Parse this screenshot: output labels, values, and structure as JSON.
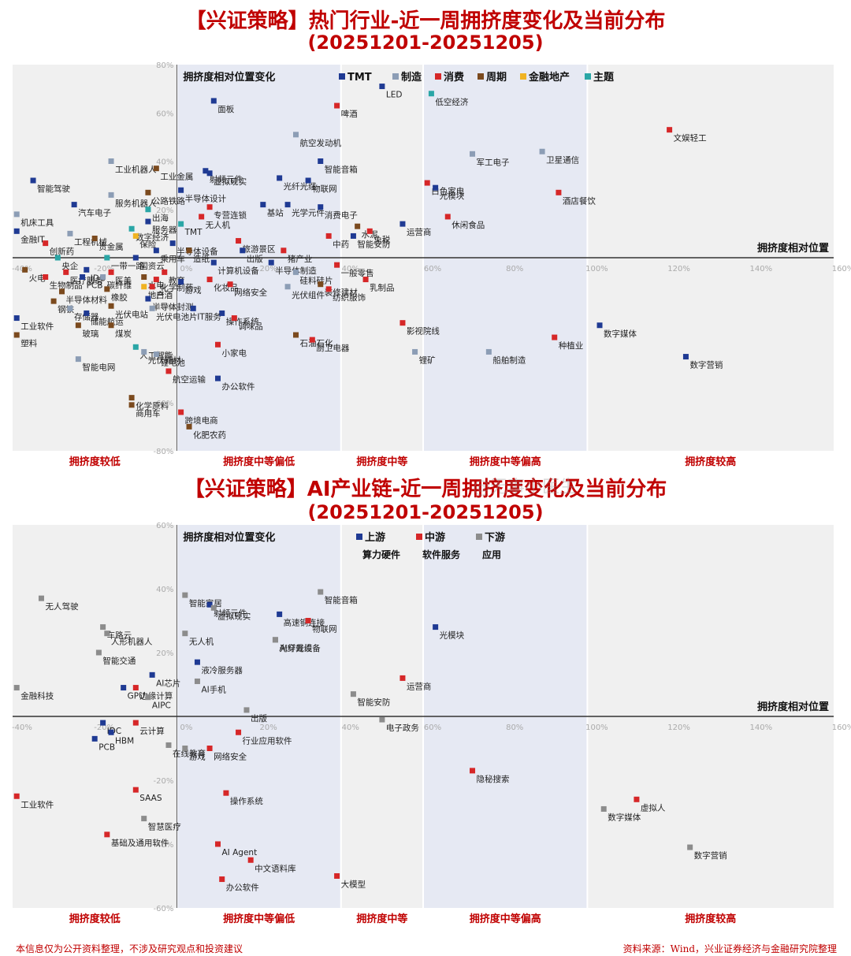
{
  "chart_data": [
    {
      "type": "scatter",
      "title": "【兴证策略】热门行业-近一周拥挤度变化及当前分布",
      "subtitle": "(20251201-20251205)",
      "xlabel": "拥挤度相对位置",
      "ylabel": "拥挤度相对位置变化",
      "xlim": [
        -40,
        160
      ],
      "ylim": [
        -80,
        80
      ],
      "xticks": [
        "-40%",
        "-20%",
        "0%",
        "20%",
        "40%",
        "60%",
        "80%",
        "100%",
        "120%",
        "140%",
        "160%"
      ],
      "yticks": [
        "-80%",
        "-60%",
        "-40%",
        "-20%",
        "0%",
        "20%",
        "40%",
        "60%",
        "80%"
      ],
      "zones": [
        "拥挤度较低",
        "拥挤度中等偏低",
        "拥挤度中等",
        "拥挤度中等偏高",
        "拥挤度较高"
      ],
      "legend_position": "top",
      "categories": [
        {
          "key": "TMT",
          "name": "TMT",
          "color": "#1f3a93"
        },
        {
          "key": "MFG",
          "name": "制造",
          "color": "#8c9db5"
        },
        {
          "key": "CON",
          "name": "消费",
          "color": "#d62728"
        },
        {
          "key": "CYC",
          "name": "周期",
          "color": "#7b4a1e"
        },
        {
          "key": "FIN",
          "name": "金融地产",
          "color": "#f0b323"
        },
        {
          "key": "THM",
          "name": "主题",
          "color": "#2aa6a6"
        }
      ],
      "points": [
        {
          "label": "文娱轻工",
          "x": 120,
          "y": 53,
          "cat": "CON"
        },
        {
          "label": "LED",
          "x": 50,
          "y": 71,
          "cat": "TMT"
        },
        {
          "label": "低空经济",
          "x": 62,
          "y": 68,
          "cat": "THM"
        },
        {
          "label": "面板",
          "x": 9,
          "y": 65,
          "cat": "TMT"
        },
        {
          "label": "啤酒",
          "x": 39,
          "y": 63,
          "cat": "CON"
        },
        {
          "label": "航空发动机",
          "x": 29,
          "y": 51,
          "cat": "MFG"
        },
        {
          "label": "军工电子",
          "x": 72,
          "y": 43,
          "cat": "MFG"
        },
        {
          "label": "卫星通信",
          "x": 89,
          "y": 44,
          "cat": "MFG"
        },
        {
          "label": "工业机器人",
          "x": -16,
          "y": 40,
          "cat": "MFG"
        },
        {
          "label": "工业金属",
          "x": -5,
          "y": 37,
          "cat": "CYC"
        },
        {
          "label": "射频元件",
          "x": 7,
          "y": 36,
          "cat": "TMT"
        },
        {
          "label": "虚拟现实",
          "x": 8,
          "y": 35,
          "cat": "TMT"
        },
        {
          "label": "光纤光缆",
          "x": 25,
          "y": 33,
          "cat": "TMT"
        },
        {
          "label": "智能音箱",
          "x": 35,
          "y": 40,
          "cat": "TMT"
        },
        {
          "label": "物联网",
          "x": 32,
          "y": 32,
          "cat": "TMT"
        },
        {
          "label": "白色家电",
          "x": 61,
          "y": 31,
          "cat": "CON"
        },
        {
          "label": "光模块",
          "x": 63,
          "y": 29,
          "cat": "TMT"
        },
        {
          "label": "酒店餐饮",
          "x": 93,
          "y": 27,
          "cat": "CON"
        },
        {
          "label": "智能驾驶",
          "x": -35,
          "y": 32,
          "cat": "TMT"
        },
        {
          "label": "服务机器人",
          "x": -16,
          "y": 26,
          "cat": "MFG"
        },
        {
          "label": "公路铁路",
          "x": -7,
          "y": 27,
          "cat": "CYC"
        },
        {
          "label": "半导体设计",
          "x": 1,
          "y": 28,
          "cat": "TMT"
        },
        {
          "label": "基站",
          "x": 21,
          "y": 22,
          "cat": "TMT"
        },
        {
          "label": "光学元件",
          "x": 27,
          "y": 22,
          "cat": "TMT"
        },
        {
          "label": "消费电子",
          "x": 35,
          "y": 21,
          "cat": "TMT"
        },
        {
          "label": "休闲食品",
          "x": 66,
          "y": 17,
          "cat": "CON"
        },
        {
          "label": "机床工具",
          "x": -39,
          "y": 18,
          "cat": "MFG"
        },
        {
          "label": "汽车电子",
          "x": -25,
          "y": 22,
          "cat": "TMT"
        },
        {
          "label": "出海",
          "x": -7,
          "y": 20,
          "cat": "THM"
        },
        {
          "label": "无人机",
          "x": 6,
          "y": 17,
          "cat": "CON"
        },
        {
          "label": "专营连锁",
          "x": 8,
          "y": 21,
          "cat": "CON"
        },
        {
          "label": "水泥",
          "x": 44,
          "y": 13,
          "cat": "CYC"
        },
        {
          "label": "运营商",
          "x": 55,
          "y": 14,
          "cat": "TMT"
        },
        {
          "label": "服务器",
          "x": -7,
          "y": 15,
          "cat": "TMT"
        },
        {
          "label": "金融IT",
          "x": -39,
          "y": 11,
          "cat": "TMT"
        },
        {
          "label": "工程机械",
          "x": -26,
          "y": 10,
          "cat": "MFG"
        },
        {
          "label": "数字经济",
          "x": -11,
          "y": 12,
          "cat": "THM"
        },
        {
          "label": "TMT",
          "x": 1,
          "y": 14,
          "cat": "THM"
        },
        {
          "label": "中药",
          "x": 37,
          "y": 9,
          "cat": "CON"
        },
        {
          "label": "免税",
          "x": 47,
          "y": 11,
          "cat": "CON"
        },
        {
          "label": "创新药",
          "x": -32,
          "y": 6,
          "cat": "CON"
        },
        {
          "label": "贵金属",
          "x": -20,
          "y": 8,
          "cat": "CYC"
        },
        {
          "label": "保险",
          "x": -10,
          "y": 9,
          "cat": "FIN"
        },
        {
          "label": "半导体设备",
          "x": -1,
          "y": 6,
          "cat": "TMT"
        },
        {
          "label": "旅游景区",
          "x": 15,
          "y": 7,
          "cat": "CON"
        },
        {
          "label": "猪产业",
          "x": 26,
          "y": 3,
          "cat": "CON"
        },
        {
          "label": "智能安防",
          "x": 43,
          "y": 9,
          "cat": "TMT"
        },
        {
          "label": "国资云",
          "x": -10,
          "y": 0,
          "cat": "TMT"
        },
        {
          "label": "乘用车",
          "x": -5,
          "y": 3,
          "cat": "TMT"
        },
        {
          "label": "造纸",
          "x": 3,
          "y": 3,
          "cat": "CYC"
        },
        {
          "label": "出版",
          "x": 16,
          "y": 3,
          "cat": "TMT"
        },
        {
          "label": "一带一路",
          "x": -17,
          "y": 0,
          "cat": "THM"
        },
        {
          "label": "央企",
          "x": -29,
          "y": 0,
          "cat": "THM"
        },
        {
          "label": "医疗服务",
          "x": -27,
          "y": -6,
          "cat": "CON"
        },
        {
          "label": "IDC",
          "x": -22,
          "y": -5,
          "cat": "TMT"
        },
        {
          "label": "医美",
          "x": -16,
          "y": -6,
          "cat": "CON"
        },
        {
          "label": "教育",
          "x": -3,
          "y": -6,
          "cat": "CON"
        },
        {
          "label": "计算机设备",
          "x": 9,
          "y": -2,
          "cat": "TMT"
        },
        {
          "label": "半导体制造",
          "x": 23,
          "y": -2,
          "cat": "TMT"
        },
        {
          "label": "硅料硅片",
          "x": 29,
          "y": -6,
          "cat": "MFG"
        },
        {
          "label": "一般零售",
          "x": 39,
          "y": -3,
          "cat": "CON"
        },
        {
          "label": "火电",
          "x": -37,
          "y": -5,
          "cat": "CYC"
        },
        {
          "label": "生物制品",
          "x": -32,
          "y": -8,
          "cat": "CON"
        },
        {
          "label": "PCB",
          "x": -23,
          "y": -8,
          "cat": "TMT"
        },
        {
          "label": "碳纤维",
          "x": -18,
          "y": -8,
          "cat": "MFG"
        },
        {
          "label": "水电",
          "x": -8,
          "y": -8,
          "cat": "CYC"
        },
        {
          "label": "化学制药",
          "x": -5,
          "y": -9,
          "cat": "CON"
        },
        {
          "label": "地产",
          "x": -8,
          "y": -12,
          "cat": "FIN"
        },
        {
          "label": "白酒",
          "x": -6,
          "y": -12,
          "cat": "CON"
        },
        {
          "label": "化妆品",
          "x": 8,
          "y": -9,
          "cat": "CON"
        },
        {
          "label": "装修建材",
          "x": 35,
          "y": -11,
          "cat": "CYC"
        },
        {
          "label": "乳制品",
          "x": 46,
          "y": -9,
          "cat": "CON"
        },
        {
          "label": "半导体材料",
          "x": -28,
          "y": -14,
          "cat": "CYC"
        },
        {
          "label": "橡胶",
          "x": -17,
          "y": -13,
          "cat": "CYC"
        },
        {
          "label": "半导体封测",
          "x": -7,
          "y": -17,
          "cat": "TMT"
        },
        {
          "label": "游戏",
          "x": 1,
          "y": -10,
          "cat": "TMT"
        },
        {
          "label": "网络安全",
          "x": 13,
          "y": -11,
          "cat": "CON"
        },
        {
          "label": "光伏组件",
          "x": 27,
          "y": -12,
          "cat": "MFG"
        },
        {
          "label": "纺织服饰",
          "x": 37,
          "y": -13,
          "cat": "CON"
        },
        {
          "label": "钢铁",
          "x": -30,
          "y": -18,
          "cat": "CYC"
        },
        {
          "label": "工业软件",
          "x": -39,
          "y": -25,
          "cat": "TMT"
        },
        {
          "label": "存储器",
          "x": -26,
          "y": -21,
          "cat": "MFG"
        },
        {
          "label": "储能航运",
          "x": -22,
          "y": -23,
          "cat": "TMT"
        },
        {
          "label": "光伏电站",
          "x": -16,
          "y": -20,
          "cat": "CYC"
        },
        {
          "label": "光伏电池片",
          "x": -6,
          "y": -21,
          "cat": "MFG"
        },
        {
          "label": "操作系统",
          "x": 11,
          "y": -23,
          "cat": "TMT"
        },
        {
          "label": "IT服务",
          "x": 4,
          "y": -21,
          "cat": "TMT"
        },
        {
          "label": "调味品",
          "x": 14,
          "y": -25,
          "cat": "CON"
        },
        {
          "label": "影视院线",
          "x": 55,
          "y": -27,
          "cat": "CON"
        },
        {
          "label": "种植业",
          "x": 92,
          "y": -33,
          "cat": "CON"
        },
        {
          "label": "数字媒体",
          "x": 103,
          "y": -28,
          "cat": "TMT"
        },
        {
          "label": "塑料",
          "x": -39,
          "y": -32,
          "cat": "CYC"
        },
        {
          "label": "玻璃",
          "x": -24,
          "y": -28,
          "cat": "CYC"
        },
        {
          "label": "煤炭",
          "x": -16,
          "y": -28,
          "cat": "CYC"
        },
        {
          "label": "石油石化",
          "x": 29,
          "y": -32,
          "cat": "CYC"
        },
        {
          "label": "厨卫电器",
          "x": 33,
          "y": -34,
          "cat": "CON"
        },
        {
          "label": "人工智能",
          "x": -10,
          "y": -37,
          "cat": "THM"
        },
        {
          "label": "光伏辅材",
          "x": -8,
          "y": -39,
          "cat": "MFG"
        },
        {
          "label": "小家电",
          "x": 10,
          "y": -36,
          "cat": "CON"
        },
        {
          "label": "锂矿",
          "x": 58,
          "y": -39,
          "cat": "MFG"
        },
        {
          "label": "船舶制造",
          "x": 76,
          "y": -39,
          "cat": "MFG"
        },
        {
          "label": "数字营销",
          "x": 124,
          "y": -41,
          "cat": "TMT"
        },
        {
          "label": "锂电池",
          "x": -5,
          "y": -40,
          "cat": "MFG"
        },
        {
          "label": "智能电网",
          "x": -24,
          "y": -42,
          "cat": "MFG"
        },
        {
          "label": "航空运输",
          "x": -2,
          "y": -47,
          "cat": "CON"
        },
        {
          "label": "办公软件",
          "x": 10,
          "y": -50,
          "cat": "TMT"
        },
        {
          "label": "化学原料",
          "x": -11,
          "y": -58,
          "cat": "CYC"
        },
        {
          "label": "商用车",
          "x": -11,
          "y": -61,
          "cat": "CYC"
        },
        {
          "label": "跨境电商",
          "x": 1,
          "y": -64,
          "cat": "CON"
        },
        {
          "label": "化肥农药",
          "x": 3,
          "y": -70,
          "cat": "CYC"
        }
      ]
    },
    {
      "type": "scatter",
      "title": "【兴证策略】AI产业链-近一周拥挤度变化及当前分布",
      "subtitle": "(20251201-20251205)",
      "xlabel": "拥挤度相对位置",
      "ylabel": "拥挤度相对位置变化",
      "xlim": [
        -40,
        160
      ],
      "ylim": [
        -60,
        60
      ],
      "xticks": [
        "-40%",
        "-20%",
        "0%",
        "20%",
        "40%",
        "60%",
        "80%",
        "100%",
        "120%",
        "140%",
        "160%"
      ],
      "yticks": [
        "-60%",
        "-40%",
        "-20%",
        "0%",
        "20%",
        "40%",
        "60%"
      ],
      "zones": [
        "拥挤度较低",
        "拥挤度中等偏低",
        "拥挤度中等",
        "拥挤度中等偏高",
        "拥挤度较高"
      ],
      "legend_position": "top",
      "categories": [
        {
          "key": "UP",
          "name": "上游",
          "sub": "算力硬件",
          "color": "#1f3a93"
        },
        {
          "key": "MID",
          "name": "中游",
          "sub": "软件服务",
          "color": "#d62728"
        },
        {
          "key": "DN",
          "name": "下游",
          "sub": "应用",
          "color": "#8c8c8c"
        }
      ],
      "points": [
        {
          "label": "智能家居",
          "x": 2,
          "y": 38,
          "cat": "DN"
        },
        {
          "label": "射频元件",
          "x": 8,
          "y": 35,
          "cat": "UP"
        },
        {
          "label": "虚拟现实",
          "x": 9,
          "y": 34,
          "cat": "DN"
        },
        {
          "label": "高速铜连接",
          "x": 25,
          "y": 32,
          "cat": "UP"
        },
        {
          "label": "智能音箱",
          "x": 35,
          "y": 39,
          "cat": "DN"
        },
        {
          "label": "物联网",
          "x": 32,
          "y": 30,
          "cat": "MID"
        },
        {
          "label": "光纤光缆",
          "x": 24,
          "y": 24,
          "cat": "DN"
        },
        {
          "label": "光模块",
          "x": 63,
          "y": 28,
          "cat": "UP"
        },
        {
          "label": "无人驾驶",
          "x": -33,
          "y": 37,
          "cat": "DN"
        },
        {
          "label": "车路云",
          "x": -18,
          "y": 28,
          "cat": "DN"
        },
        {
          "label": "人形机器人",
          "x": -17,
          "y": 26,
          "cat": "DN"
        },
        {
          "label": "智能交通",
          "x": -19,
          "y": 20,
          "cat": "DN"
        },
        {
          "label": "无人机",
          "x": 2,
          "y": 26,
          "cat": "DN"
        },
        {
          "label": "液冷服务器",
          "x": 5,
          "y": 17,
          "cat": "UP"
        },
        {
          "label": "AI穿戴设备",
          "x": 24,
          "y": 24,
          "cat": "DN"
        },
        {
          "label": "运营商",
          "x": 55,
          "y": 12,
          "cat": "MID"
        },
        {
          "label": "AI芯片",
          "x": -6,
          "y": 13,
          "cat": "UP"
        },
        {
          "label": "AI手机",
          "x": 5,
          "y": 11,
          "cat": "DN"
        },
        {
          "label": "金融科技",
          "x": -39,
          "y": 9,
          "cat": "DN"
        },
        {
          "label": "边缘计算",
          "x": -10,
          "y": 9,
          "cat": "MID"
        },
        {
          "label": "GPU",
          "x": -13,
          "y": 9,
          "cat": "UP"
        },
        {
          "label": "出版",
          "x": 17,
          "y": 2,
          "cat": "DN"
        },
        {
          "label": "智能安防",
          "x": 43,
          "y": 7,
          "cat": "DN"
        },
        {
          "label": "电子政务",
          "x": 50,
          "y": -1,
          "cat": "DN"
        },
        {
          "label": "AIPC",
          "x": -7,
          "y": 6,
          "cat": "DN"
        },
        {
          "label": "IDC",
          "x": -18,
          "y": -2,
          "cat": "UP"
        },
        {
          "label": "云计算",
          "x": -10,
          "y": -2,
          "cat": "MID"
        },
        {
          "label": "HBM",
          "x": -16,
          "y": -5,
          "cat": "UP"
        },
        {
          "label": "PCB",
          "x": -20,
          "y": -7,
          "cat": "UP"
        },
        {
          "label": "行业应用软件",
          "x": 15,
          "y": -5,
          "cat": "MID"
        },
        {
          "label": "在线教育",
          "x": -2,
          "y": -9,
          "cat": "DN"
        },
        {
          "label": "游戏",
          "x": 2,
          "y": -10,
          "cat": "DN"
        },
        {
          "label": "网络安全",
          "x": 8,
          "y": -10,
          "cat": "MID"
        },
        {
          "label": "隐秘搜索",
          "x": 72,
          "y": -17,
          "cat": "MID"
        },
        {
          "label": "工业软件",
          "x": -39,
          "y": -25,
          "cat": "MID"
        },
        {
          "label": "SAAS",
          "x": -10,
          "y": -23,
          "cat": "MID"
        },
        {
          "label": "操作系统",
          "x": 12,
          "y": -24,
          "cat": "MID"
        },
        {
          "label": "数字媒体",
          "x": 104,
          "y": -29,
          "cat": "DN"
        },
        {
          "label": "虚拟人",
          "x": 112,
          "y": -26,
          "cat": "MID"
        },
        {
          "label": "智慧医疗",
          "x": -8,
          "y": -32,
          "cat": "DN"
        },
        {
          "label": "基础及通用软件",
          "x": -17,
          "y": -37,
          "cat": "MID"
        },
        {
          "label": "AI Agent",
          "x": 10,
          "y": -40,
          "cat": "MID"
        },
        {
          "label": "数字营销",
          "x": 125,
          "y": -41,
          "cat": "DN"
        },
        {
          "label": "中文语料库",
          "x": 18,
          "y": -45,
          "cat": "MID"
        },
        {
          "label": "大模型",
          "x": 39,
          "y": -50,
          "cat": "MID"
        },
        {
          "label": "办公软件",
          "x": 11,
          "y": -51,
          "cat": "MID"
        }
      ]
    }
  ],
  "footer": {
    "left": "本信息仅为公开资料整理，不涉及研究观点和投资建议",
    "right": "资料来源：Wind，兴业证券经济与金融研究院整理"
  },
  "watermark": "@无事小医生"
}
